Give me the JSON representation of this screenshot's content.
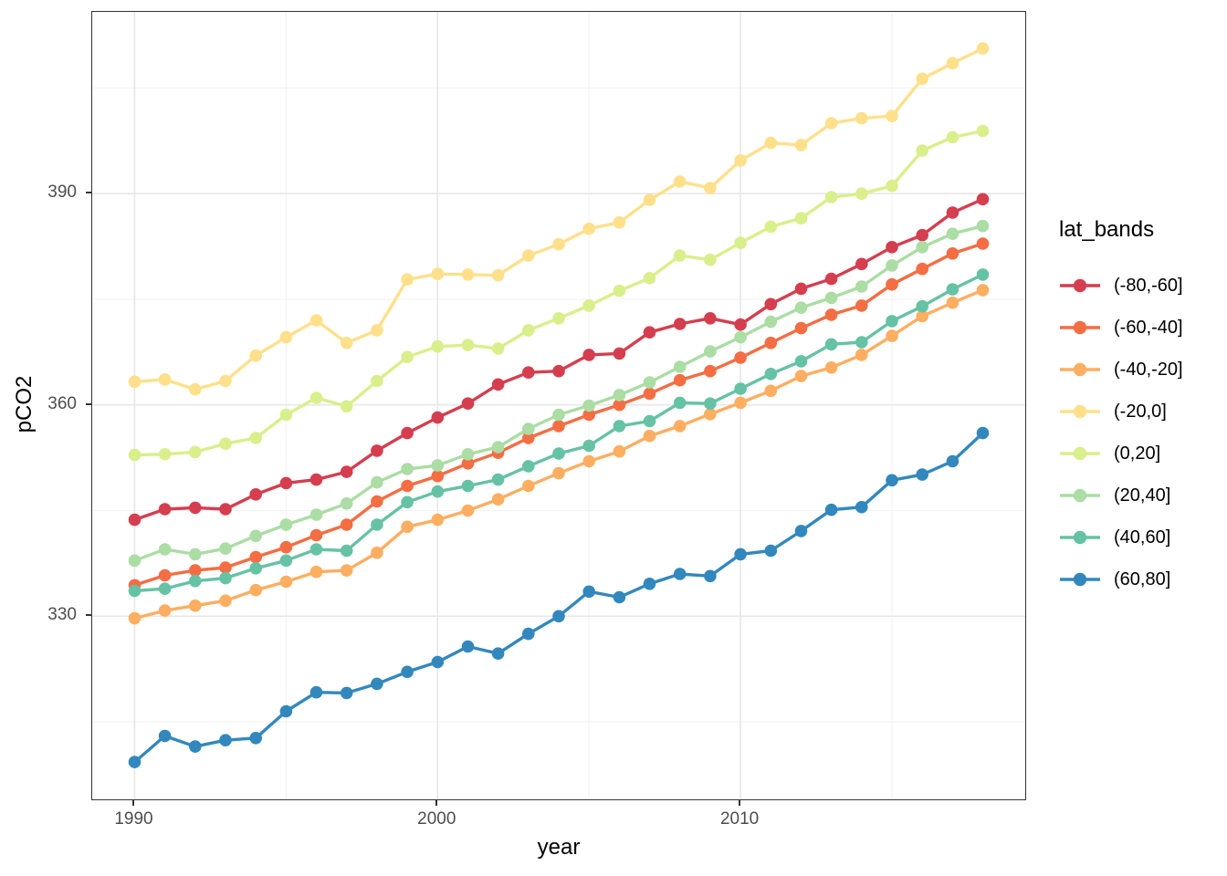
{
  "chart_data": {
    "type": "line",
    "title": "",
    "xlabel": "year",
    "ylabel": "pCO2",
    "legend_title": "lat_bands",
    "legend_position": "right",
    "grid": true,
    "xlim": [
      1988.6,
      2019.4
    ],
    "ylim": [
      304.0,
      415.8
    ],
    "xticks": [
      1990,
      2000,
      2010
    ],
    "xticks_minor": [
      1995,
      2005,
      2015
    ],
    "yticks": [
      330,
      360,
      390
    ],
    "yticks_minor": [
      315,
      345,
      375,
      405
    ],
    "x": [
      1990,
      1991,
      1992,
      1993,
      1994,
      1995,
      1996,
      1997,
      1998,
      1999,
      2000,
      2001,
      2002,
      2003,
      2004,
      2005,
      2006,
      2007,
      2008,
      2009,
      2010,
      2011,
      2012,
      2013,
      2014,
      2015,
      2016,
      2017,
      2018
    ],
    "series": [
      {
        "name": "(-80,-60]",
        "color": "#d53e4f",
        "values": [
          343.7,
          345.2,
          345.4,
          345.2,
          347.3,
          348.9,
          349.4,
          350.5,
          353.5,
          356.0,
          358.2,
          360.2,
          362.9,
          364.6,
          364.8,
          367.1,
          367.3,
          370.3,
          371.5,
          372.3,
          371.4,
          374.3,
          376.5,
          377.9,
          380.0,
          382.4,
          384.1,
          387.3,
          389.2
        ]
      },
      {
        "name": "(-60,-40]",
        "color": "#f46d43",
        "values": [
          334.4,
          335.8,
          336.5,
          336.9,
          338.4,
          339.8,
          341.5,
          343.0,
          346.3,
          348.5,
          349.9,
          351.7,
          353.2,
          355.3,
          357.0,
          358.6,
          360.0,
          361.6,
          363.5,
          364.8,
          366.7,
          368.8,
          370.9,
          372.8,
          374.1,
          377.1,
          379.3,
          381.5,
          382.9
        ]
      },
      {
        "name": "(-40,-20]",
        "color": "#fdae61",
        "values": [
          329.7,
          330.8,
          331.5,
          332.2,
          333.7,
          334.9,
          336.3,
          336.5,
          339.0,
          342.7,
          343.7,
          345.0,
          346.6,
          348.5,
          350.3,
          352.0,
          353.4,
          355.6,
          357.0,
          358.7,
          360.3,
          362.0,
          364.1,
          365.3,
          367.1,
          369.8,
          372.6,
          374.5,
          376.3
        ]
      },
      {
        "name": "(-20,0]",
        "color": "#fee08b",
        "values": [
          363.3,
          363.6,
          362.2,
          363.4,
          367.0,
          369.6,
          372.0,
          368.8,
          370.6,
          377.8,
          378.6,
          378.5,
          378.4,
          381.2,
          382.8,
          385.0,
          385.9,
          389.1,
          391.7,
          390.8,
          394.7,
          397.2,
          396.9,
          400.0,
          400.7,
          401.0,
          406.3,
          408.5,
          410.6
        ]
      },
      {
        "name": "(0,20]",
        "color": "#d9ef8b",
        "values": [
          352.9,
          353.0,
          353.3,
          354.5,
          355.3,
          358.6,
          361.0,
          359.8,
          363.4,
          366.8,
          368.3,
          368.5,
          368.0,
          370.6,
          372.3,
          374.1,
          376.2,
          378.0,
          381.2,
          380.6,
          383.0,
          385.3,
          386.5,
          389.5,
          390.0,
          391.1,
          396.1,
          398.0,
          398.9
        ]
      },
      {
        "name": "(20,40]",
        "color": "#abdda4",
        "values": [
          337.9,
          339.5,
          338.8,
          339.6,
          341.4,
          343.0,
          344.4,
          346.0,
          349.0,
          350.9,
          351.4,
          353.0,
          354.0,
          356.6,
          358.6,
          359.9,
          361.4,
          363.2,
          365.4,
          367.6,
          369.6,
          371.8,
          373.8,
          375.2,
          376.8,
          379.8,
          382.4,
          384.3,
          385.4
        ]
      },
      {
        "name": "(40,60]",
        "color": "#66c2a5",
        "values": [
          333.6,
          333.9,
          335.0,
          335.4,
          336.8,
          337.9,
          339.5,
          339.3,
          343.0,
          346.2,
          347.7,
          348.5,
          349.4,
          351.3,
          353.1,
          354.2,
          357.0,
          357.7,
          360.3,
          360.2,
          362.3,
          364.4,
          366.2,
          368.6,
          368.9,
          371.9,
          374.0,
          376.4,
          378.5
        ]
      },
      {
        "name": "(60,80]",
        "color": "#3288bd",
        "values": [
          309.3,
          313.0,
          311.5,
          312.4,
          312.7,
          316.5,
          319.2,
          319.1,
          320.4,
          322.1,
          323.5,
          325.7,
          324.7,
          327.5,
          330.0,
          333.5,
          332.7,
          334.6,
          336.0,
          335.7,
          338.8,
          339.3,
          342.1,
          345.1,
          345.5,
          349.3,
          350.1,
          352.0,
          356.0
        ]
      }
    ]
  },
  "style": {
    "grid_major_color": "#e7e7e7",
    "grid_minor_color": "#f3f3f3",
    "panel_border_color": "#333333",
    "tick_color": "#333333",
    "tick_label_color": "#4d4d4d"
  }
}
